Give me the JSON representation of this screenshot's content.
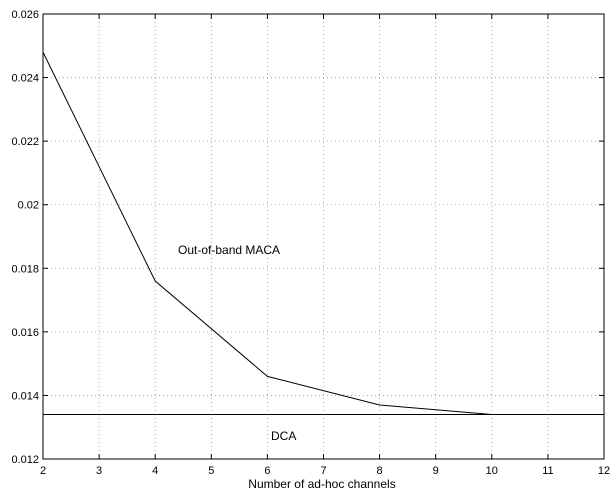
{
  "chart_data": {
    "type": "line",
    "title": "",
    "xlabel": "Number of ad-hoc channels",
    "ylabel": "",
    "xlim": [
      2,
      12
    ],
    "ylim": [
      0.012,
      0.026
    ],
    "xticks": [
      "2",
      "3",
      "4",
      "5",
      "6",
      "7",
      "8",
      "9",
      "10",
      "11",
      "12"
    ],
    "yticks": [
      "0.012",
      "0.014",
      "0.016",
      "0.018",
      "0.02",
      "0.022",
      "0.024",
      "0.026"
    ],
    "grid": true,
    "series": [
      {
        "name": "Out-of-band MACA",
        "x": [
          2,
          4,
          6,
          8,
          10
        ],
        "y": [
          0.0248,
          0.0176,
          0.0146,
          0.0137,
          0.0134
        ]
      },
      {
        "name": "DCA",
        "x": [
          2,
          12
        ],
        "y": [
          0.0134,
          0.0134
        ]
      }
    ],
    "colors": {
      "line": "#000000",
      "grid": "#9a9a9a",
      "axes": "#000000"
    }
  }
}
